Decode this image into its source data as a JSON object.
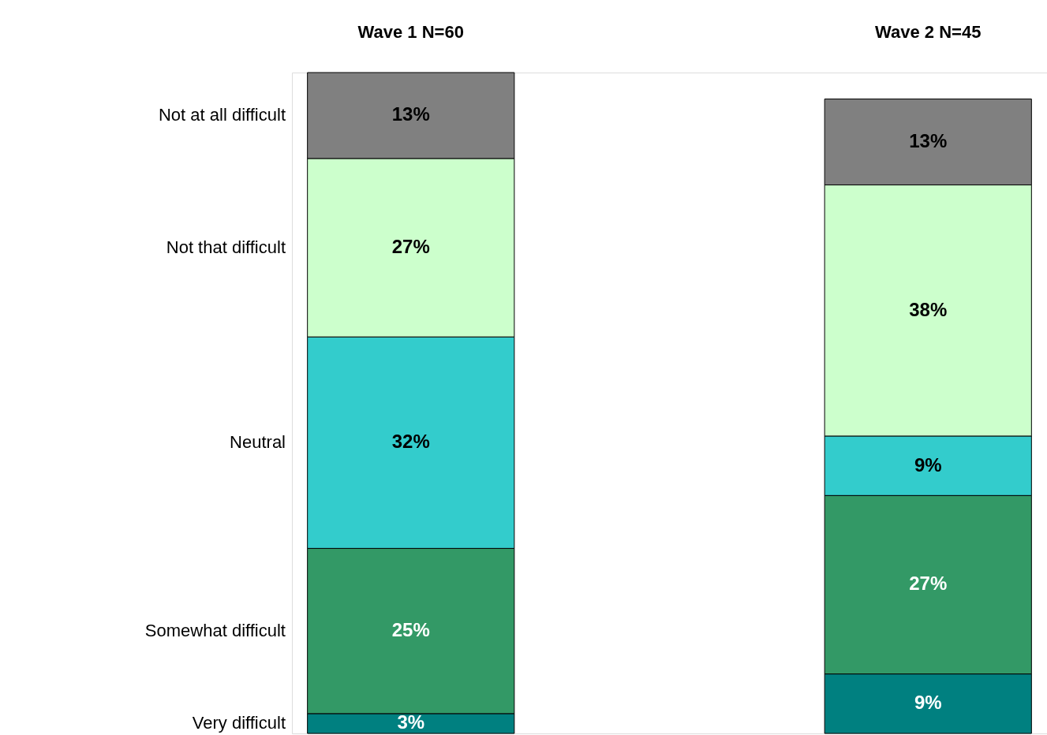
{
  "chart_data": {
    "type": "bar",
    "stacked": true,
    "legend": "left",
    "grid": false,
    "categories": [
      "Wave 1 N=60",
      "Wave 2 N=45"
    ],
    "series": [
      {
        "name": "Very difficult",
        "color": "#008080",
        "values": [
          3,
          9
        ],
        "value_labels": [
          "3%",
          "9%"
        ]
      },
      {
        "name": "Somewhat difficult",
        "color": "#339966",
        "values": [
          25,
          27
        ],
        "value_labels": [
          "25%",
          "27%"
        ]
      },
      {
        "name": "Neutral",
        "color": "#33cccc",
        "values": [
          32,
          9
        ],
        "value_labels": [
          "32%",
          "9%"
        ]
      },
      {
        "name": "Not that difficult",
        "color": "#ccffcc",
        "values": [
          27,
          38
        ],
        "value_labels": [
          "27%",
          "38%"
        ]
      },
      {
        "name": "Not at all difficult",
        "color": "#808080",
        "values": [
          13,
          13
        ],
        "value_labels": [
          "13%",
          "13%"
        ]
      }
    ]
  }
}
